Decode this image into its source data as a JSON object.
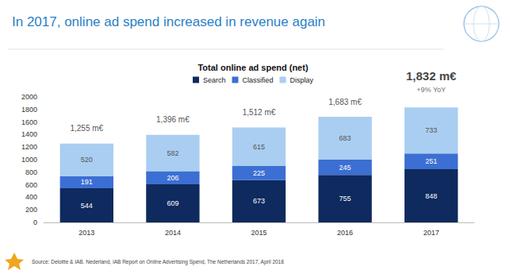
{
  "chart_data": {
    "type": "bar",
    "title": "In 2017, online ad spend increased in revenue again",
    "subtitle": "Total online ad spend (net)",
    "source": "Source: Deloitte & IAB. Nederland, IAB Report on Online Advertising Spend, The Netherlands 2017, April 2018",
    "categories": [
      "2013",
      "2014",
      "2015",
      "2016",
      "2017"
    ],
    "series": [
      {
        "name": "Search",
        "color": "#0e2a5e",
        "values": [
          544,
          609,
          673,
          755,
          848
        ]
      },
      {
        "name": "Classified",
        "color": "#3c6fd3",
        "values": [
          191,
          206,
          225,
          245,
          251
        ]
      },
      {
        "name": "Display",
        "color": "#a9cef1",
        "values": [
          520,
          582,
          615,
          683,
          733
        ]
      }
    ],
    "totals": [
      1255,
      1396,
      1512,
      1683,
      1832
    ],
    "total_labels": [
      "1,255 m€",
      "1,396 m€",
      "1,512 m€",
      "1,683 m€",
      "1,832 m€"
    ],
    "annotation": {
      "text": "+9% YoY",
      "category": "2017"
    },
    "stacked": true,
    "data_labels": true,
    "legend": "top",
    "grid": false,
    "ylim": [
      0,
      2000
    ],
    "yticks": [
      0,
      200,
      400,
      600,
      800,
      1000,
      1200,
      1400,
      1600,
      1800,
      2000
    ]
  }
}
